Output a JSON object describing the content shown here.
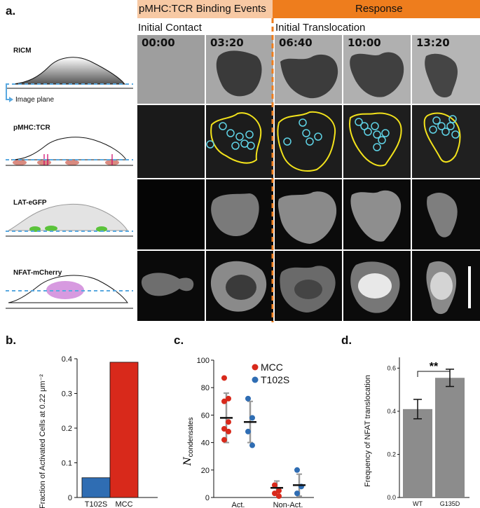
{
  "panel_a": {
    "letter": "a.",
    "header_events": "pMHC:TCR Binding Events",
    "header_response": "Response",
    "caption_initial_contact": "Initial Contact",
    "caption_initial_translocation": "Initial Translocation",
    "timestamps": [
      "00:00",
      "03:20",
      "06:40",
      "10:00",
      "13:20"
    ],
    "rows": [
      "RICM",
      "pMHC:TCR",
      "LAT-eGFP",
      "NFAT-mCherry"
    ],
    "image_plane_label": "Image plane",
    "colors": {
      "event_bar": "#f7c9a4",
      "response_bar": "#ee7d1d",
      "dashed_line": "#ee7d1d",
      "outline": "#f2e21b",
      "circles": "#5fd3e6"
    }
  },
  "chart_data": [
    {
      "panel": "b.",
      "type": "bar",
      "categories": [
        "T102S",
        "MCC"
      ],
      "values": [
        0.057,
        0.39
      ],
      "colors": [
        "#2f6db3",
        "#d8291b"
      ],
      "ylabel": "Fraction of Activated Cells at 0.22 μm⁻²",
      "ylim": [
        0,
        0.4
      ],
      "yticks": [
        "0",
        "0.1",
        "0.2",
        "0.3",
        "0.4"
      ]
    },
    {
      "panel": "c.",
      "type": "scatter",
      "ylabel": "N condensates",
      "ylabel_main": "N",
      "ylabel_sub": "condensates",
      "ylim": [
        0,
        100
      ],
      "yticks": [
        "0",
        "20",
        "40",
        "60",
        "80",
        "100"
      ],
      "categories": [
        "Act.",
        "Non-Act."
      ],
      "legend": [
        {
          "name": "MCC",
          "color": "#d8291b"
        },
        {
          "name": "T102S",
          "color": "#2f6db3"
        }
      ],
      "series": [
        {
          "name": "MCC",
          "group": "Act.",
          "points": [
            87,
            72,
            70,
            55,
            50,
            48,
            42
          ],
          "mean": 58,
          "sd": 18
        },
        {
          "name": "T102S",
          "group": "Act.",
          "points": [
            72,
            58,
            48,
            38
          ],
          "mean": 55,
          "sd": 15
        },
        {
          "name": "MCC",
          "group": "Non-Act.",
          "points": [
            9,
            5,
            3,
            1
          ],
          "mean": 7,
          "sd": 5
        },
        {
          "name": "T102S",
          "group": "Non-Act.",
          "points": [
            20,
            8,
            3
          ],
          "mean": 9,
          "sd": 8
        }
      ]
    },
    {
      "panel": "d.",
      "type": "bar",
      "categories": [
        "WT",
        "G135D"
      ],
      "values": [
        0.41,
        0.555
      ],
      "errors": [
        0.045,
        0.04
      ],
      "color": "#8c8c8c",
      "ylabel": "Frequency of NFAT translocation",
      "ylim": [
        0,
        0.65
      ],
      "yticks": [
        "0.0",
        "0.2",
        "0.4",
        "0.6"
      ],
      "annotation": "**"
    }
  ]
}
